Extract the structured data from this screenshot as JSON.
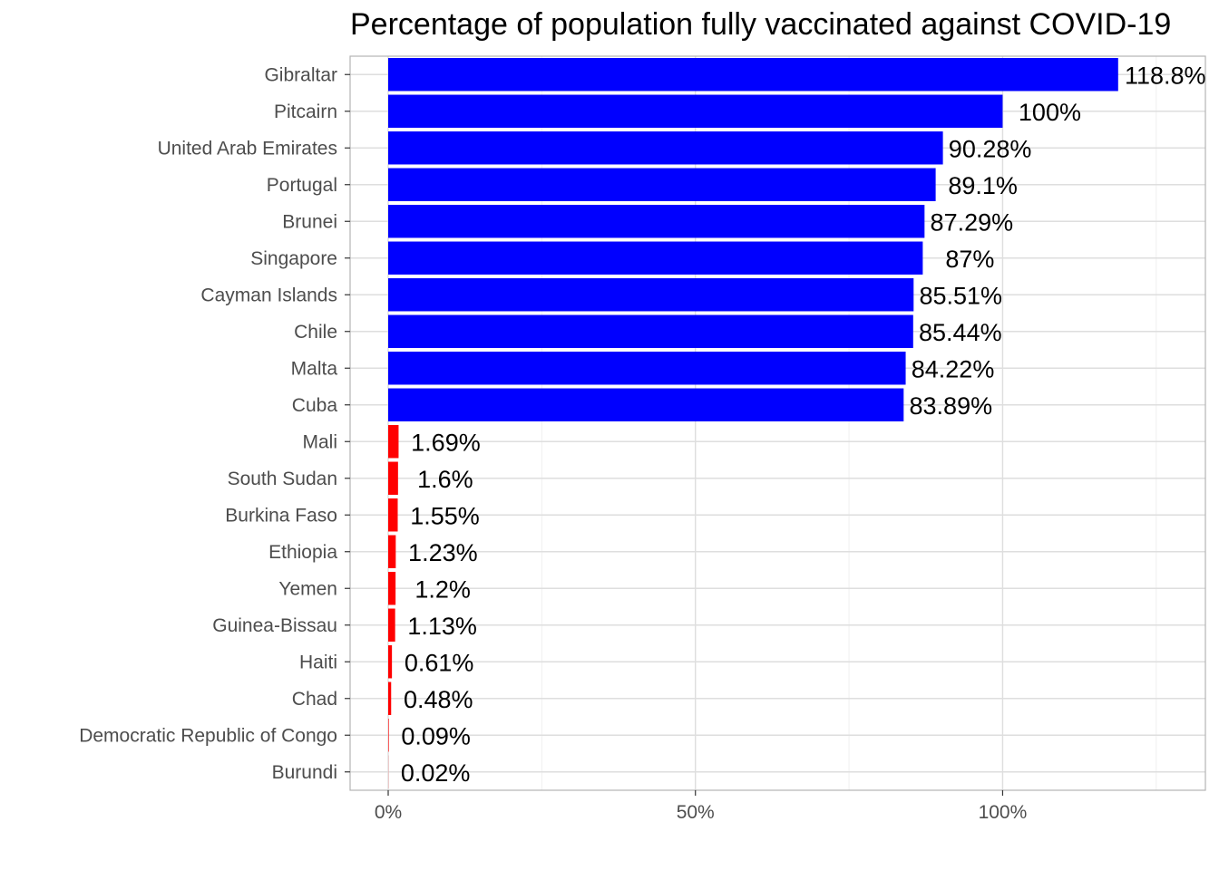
{
  "chart_data": {
    "type": "bar",
    "orientation": "horizontal",
    "title": "Percentage of population fully vaccinated against COVID-19",
    "xlabel": "",
    "ylabel": "",
    "categories": [
      "Gibraltar",
      "Pitcairn",
      "United Arab Emirates",
      "Portugal",
      "Brunei",
      "Singapore",
      "Cayman Islands",
      "Chile",
      "Malta",
      "Cuba",
      "Mali",
      "South Sudan",
      "Burkina Faso",
      "Ethiopia",
      "Yemen",
      "Guinea-Bissau",
      "Haiti",
      "Chad",
      "Democratic Republic of Congo",
      "Burundi"
    ],
    "values": [
      118.8,
      100,
      90.28,
      89.1,
      87.29,
      87,
      85.51,
      85.44,
      84.22,
      83.89,
      1.69,
      1.6,
      1.55,
      1.23,
      1.2,
      1.13,
      0.61,
      0.48,
      0.09,
      0.02
    ],
    "labels": [
      "118.8%",
      "100%",
      "90.28%",
      "89.1%",
      "87.29%",
      "87%",
      "85.51%",
      "85.44%",
      "84.22%",
      "83.89%",
      "1.69%",
      "1.6%",
      "1.55%",
      "1.23%",
      "1.2%",
      "1.13%",
      "0.61%",
      "0.48%",
      "0.09%",
      "0.02%"
    ],
    "bar_colors": [
      "#0000ff",
      "#0000ff",
      "#0000ff",
      "#0000ff",
      "#0000ff",
      "#0000ff",
      "#0000ff",
      "#0000ff",
      "#0000ff",
      "#0000ff",
      "#ff0000",
      "#ff0000",
      "#ff0000",
      "#ff0000",
      "#ff0000",
      "#ff0000",
      "#ff0000",
      "#ff0000",
      "#ff0000",
      "#ff0000"
    ],
    "xlim": [
      -6.2,
      133
    ],
    "x_ticks": [
      0,
      50,
      100
    ],
    "x_tick_labels": [
      "0%",
      "50%",
      "100%"
    ],
    "x_minor_ticks": [
      25,
      75,
      125
    ],
    "grid": true,
    "legend": "none"
  }
}
